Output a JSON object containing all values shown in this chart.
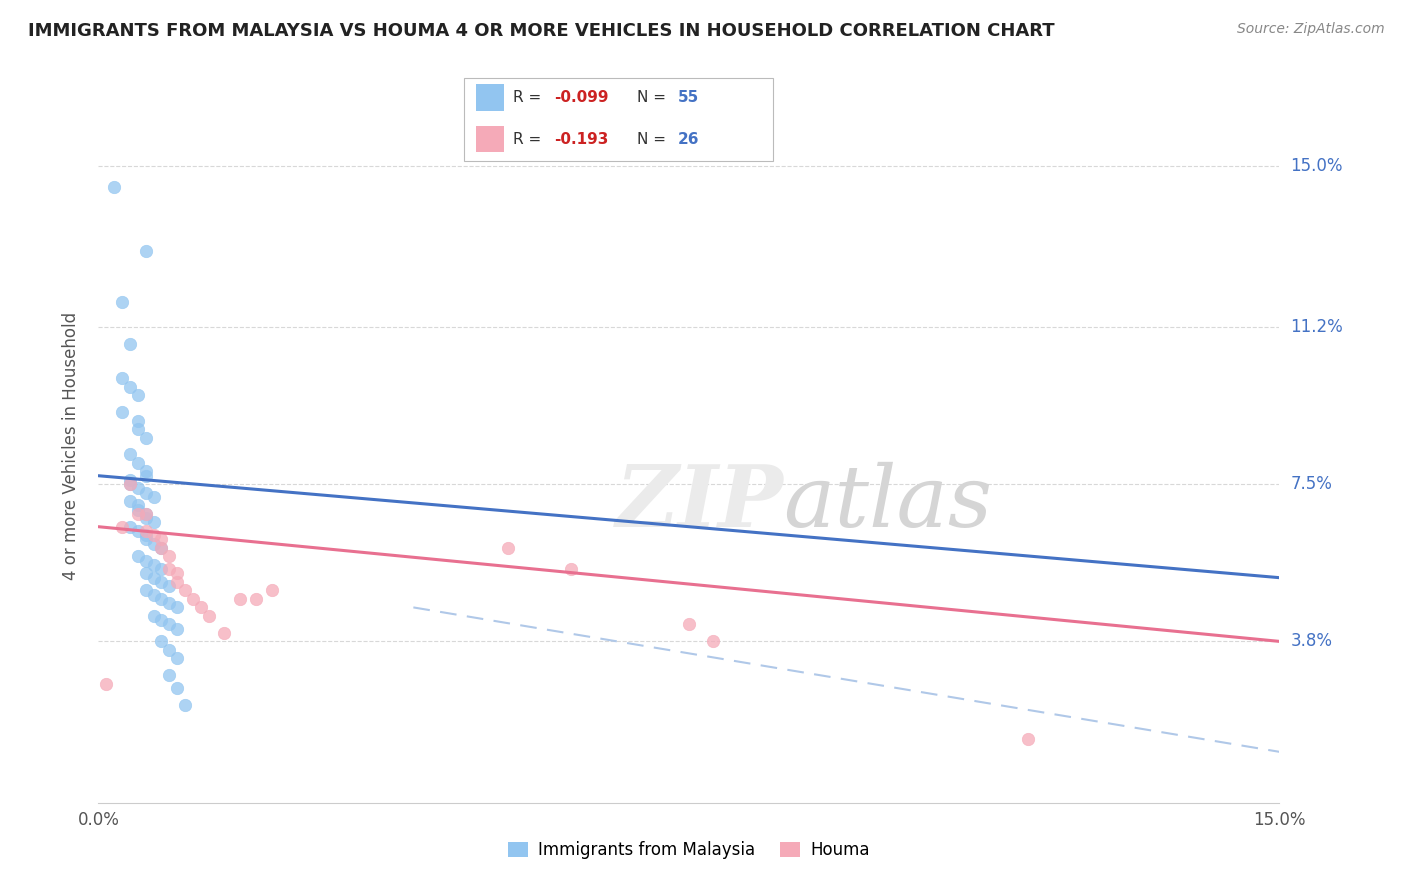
{
  "title": "IMMIGRANTS FROM MALAYSIA VS HOUMA 4 OR MORE VEHICLES IN HOUSEHOLD CORRELATION CHART",
  "source_text": "Source: ZipAtlas.com",
  "ylabel": "4 or more Vehicles in Household",
  "yticklabels_right": [
    "15.0%",
    "11.2%",
    "7.5%",
    "3.8%"
  ],
  "ytick_positions": [
    0.15,
    0.112,
    0.075,
    0.038
  ],
  "xlim": [
    0.0,
    0.15
  ],
  "ylim": [
    0.0,
    0.168
  ],
  "blue_scatter_x": [
    0.002,
    0.006,
    0.003,
    0.004,
    0.003,
    0.004,
    0.005,
    0.003,
    0.005,
    0.005,
    0.006,
    0.004,
    0.005,
    0.006,
    0.006,
    0.004,
    0.004,
    0.005,
    0.006,
    0.007,
    0.004,
    0.005,
    0.005,
    0.006,
    0.006,
    0.007,
    0.004,
    0.005,
    0.006,
    0.006,
    0.007,
    0.008,
    0.005,
    0.006,
    0.007,
    0.008,
    0.006,
    0.007,
    0.008,
    0.009,
    0.006,
    0.007,
    0.008,
    0.009,
    0.01,
    0.007,
    0.008,
    0.009,
    0.01,
    0.008,
    0.009,
    0.01,
    0.009,
    0.01,
    0.011
  ],
  "blue_scatter_y": [
    0.145,
    0.13,
    0.118,
    0.108,
    0.1,
    0.098,
    0.096,
    0.092,
    0.09,
    0.088,
    0.086,
    0.082,
    0.08,
    0.078,
    0.077,
    0.076,
    0.075,
    0.074,
    0.073,
    0.072,
    0.071,
    0.07,
    0.069,
    0.068,
    0.067,
    0.066,
    0.065,
    0.064,
    0.063,
    0.062,
    0.061,
    0.06,
    0.058,
    0.057,
    0.056,
    0.055,
    0.054,
    0.053,
    0.052,
    0.051,
    0.05,
    0.049,
    0.048,
    0.047,
    0.046,
    0.044,
    0.043,
    0.042,
    0.041,
    0.038,
    0.036,
    0.034,
    0.03,
    0.027,
    0.023
  ],
  "pink_scatter_x": [
    0.001,
    0.003,
    0.004,
    0.005,
    0.006,
    0.006,
    0.007,
    0.008,
    0.008,
    0.009,
    0.009,
    0.01,
    0.01,
    0.011,
    0.012,
    0.013,
    0.014,
    0.016,
    0.018,
    0.02,
    0.022,
    0.052,
    0.06,
    0.075,
    0.078,
    0.118
  ],
  "pink_scatter_y": [
    0.028,
    0.065,
    0.075,
    0.068,
    0.068,
    0.064,
    0.063,
    0.062,
    0.06,
    0.058,
    0.055,
    0.054,
    0.052,
    0.05,
    0.048,
    0.046,
    0.044,
    0.04,
    0.048,
    0.048,
    0.05,
    0.06,
    0.055,
    0.042,
    0.038,
    0.015
  ],
  "blue_line_x": [
    0.0,
    0.15
  ],
  "blue_line_y": [
    0.077,
    0.053
  ],
  "pink_line_x": [
    0.0,
    0.15
  ],
  "pink_line_y": [
    0.065,
    0.038
  ],
  "dash_line_x": [
    0.04,
    0.15
  ],
  "dash_line_y": [
    0.046,
    0.012
  ],
  "background_color": "#ffffff",
  "grid_color": "#d8d8d8",
  "watermark_color": "#ebebeb",
  "blue_color": "#92c5f0",
  "pink_color": "#f5aab8",
  "blue_line_color": "#4472c4",
  "pink_line_color": "#e87090",
  "dash_color": "#b0c8e8"
}
